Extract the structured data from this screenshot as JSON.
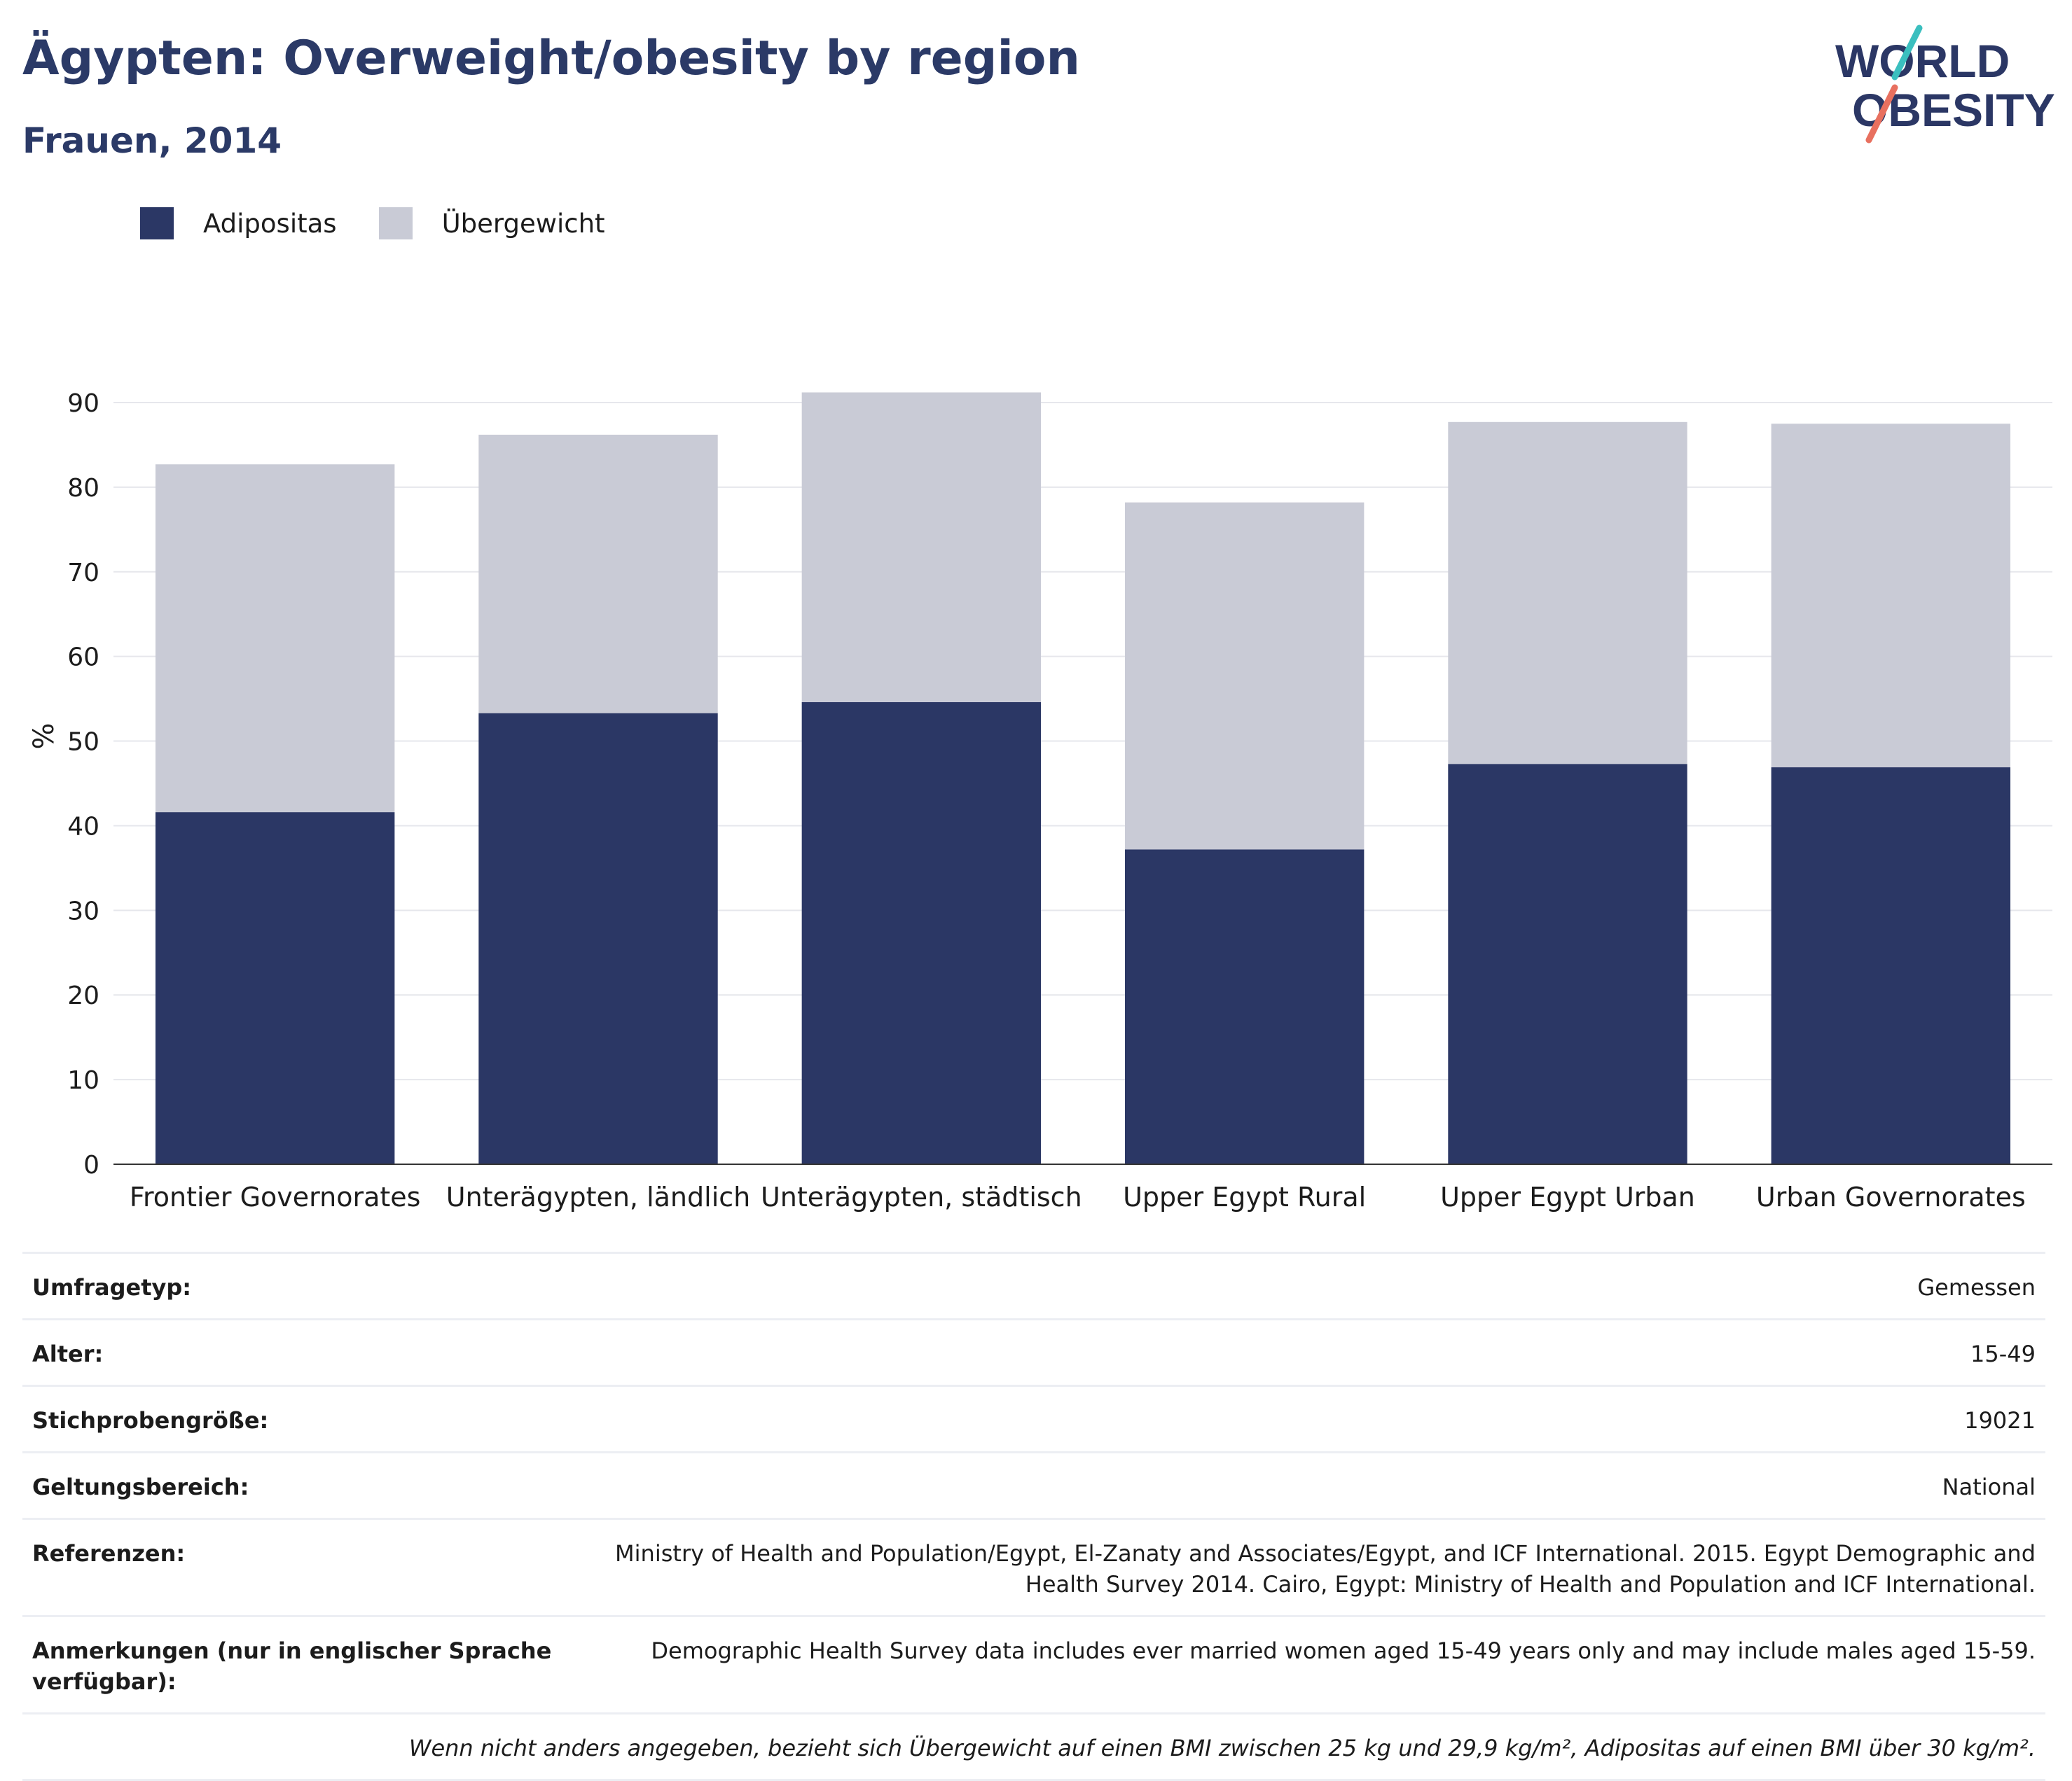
{
  "header": {
    "title": "Ägypten: Overweight/obesity by region",
    "subtitle": "Frauen, 2014"
  },
  "logo": {
    "line1": "WORLD",
    "line2": "OBESITY"
  },
  "legend": [
    {
      "label": "Adipositas",
      "color": "#2b3765"
    },
    {
      "label": "Übergewicht",
      "color": "#c9cbd6"
    }
  ],
  "chart_data": {
    "type": "bar",
    "stacked": true,
    "categories": [
      "Frontier Governorates",
      "Unterägypten, ländlich",
      "Unterägypten, städtisch",
      "Upper Egypt Rural",
      "Upper Egypt Urban",
      "Urban Governorates"
    ],
    "series": [
      {
        "name": "Adipositas",
        "color": "#2b3765",
        "values": [
          41.6,
          53.3,
          54.6,
          37.2,
          47.3,
          46.9
        ]
      },
      {
        "name": "Übergewicht",
        "color": "#c9cbd6",
        "values": [
          41.1,
          32.9,
          36.6,
          41.0,
          40.4,
          40.6
        ]
      }
    ],
    "ylabel": "%",
    "ylim": [
      0,
      90
    ],
    "yticks": [
      0,
      10,
      20,
      30,
      40,
      50,
      60,
      70,
      80,
      90
    ],
    "grid": true,
    "legend_position": "top-left"
  },
  "meta": {
    "rows": [
      {
        "key": "Umfragetyp:",
        "value": "Gemessen"
      },
      {
        "key": "Alter:",
        "value": "15-49"
      },
      {
        "key": "Stichprobengröße:",
        "value": "19021"
      },
      {
        "key": "Geltungsbereich:",
        "value": "National"
      },
      {
        "key": "Referenzen:",
        "value": "Ministry of Health and Population/Egypt, El-Zanaty and Associates/Egypt, and ICF International. 2015. Egypt Demographic and Health Survey 2014. Cairo, Egypt: Ministry of Health and Population and ICF International."
      },
      {
        "key": "Anmerkungen (nur in englischer Sprache verfügbar):",
        "value": "Demographic Health Survey data includes ever married women aged 15-49 years only and may include males aged 15-59."
      }
    ],
    "footnote": "Wenn nicht anders angegeben, bezieht sich Übergewicht auf einen BMI zwischen 25 kg und 29,9 kg/m², Adipositas auf einen BMI über 30 kg/m²."
  }
}
